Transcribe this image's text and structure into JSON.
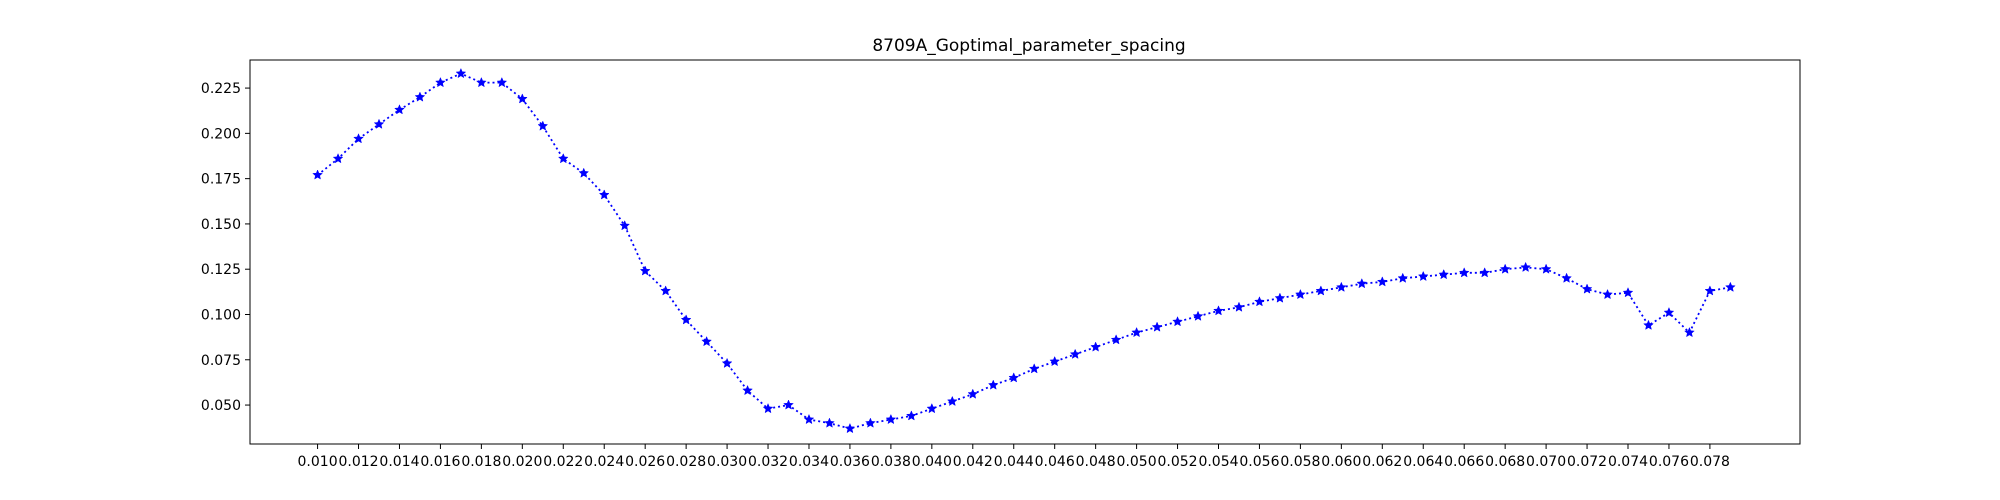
{
  "chart_data": {
    "type": "line",
    "title": "8709A_Goptimal_parameter_spacing",
    "xlabel": "",
    "ylabel": "",
    "xlim": [
      0.0067,
      0.0824
    ],
    "ylim": [
      0.0285,
      0.2405
    ],
    "x_ticks": [
      0.01,
      0.012,
      0.014,
      0.016,
      0.018,
      0.02,
      0.022,
      0.024,
      0.026,
      0.028,
      0.03,
      0.032,
      0.034,
      0.036,
      0.038,
      0.04,
      0.042,
      0.044,
      0.046,
      0.048,
      0.05,
      0.052,
      0.054,
      0.056,
      0.058,
      0.06,
      0.062,
      0.064,
      0.066,
      0.068,
      0.07,
      0.072,
      0.074,
      0.076,
      0.078
    ],
    "x_tick_labels": [
      "0.010",
      "0.012",
      "0.014",
      "0.016",
      "0.018",
      "0.020",
      "0.022",
      "0.024",
      "0.026",
      "0.028",
      "0.030",
      "0.032",
      "0.034",
      "0.036",
      "0.038",
      "0.040",
      "0.042",
      "0.044",
      "0.046",
      "0.048",
      "0.050",
      "0.052",
      "0.054",
      "0.056",
      "0.058",
      "0.060",
      "0.062",
      "0.064",
      "0.066",
      "0.068",
      "0.070",
      "0.072",
      "0.074",
      "0.076",
      "0.078"
    ],
    "y_ticks": [
      0.05,
      0.075,
      0.1,
      0.125,
      0.15,
      0.175,
      0.2,
      0.225
    ],
    "y_tick_labels": [
      "0.050",
      "0.075",
      "0.100",
      "0.125",
      "0.150",
      "0.175",
      "0.200",
      "0.225"
    ],
    "grid": false,
    "series": [
      {
        "color": "#0000ff",
        "marker": "star",
        "linestyle": "dotted",
        "x": [
          0.01,
          0.011,
          0.012,
          0.013,
          0.014,
          0.015,
          0.016,
          0.017,
          0.018,
          0.019,
          0.02,
          0.021,
          0.022,
          0.023,
          0.024,
          0.025,
          0.026,
          0.027,
          0.028,
          0.029,
          0.03,
          0.031,
          0.032,
          0.033,
          0.034,
          0.035,
          0.036,
          0.037,
          0.038,
          0.039,
          0.04,
          0.041,
          0.042,
          0.043,
          0.044,
          0.045,
          0.046,
          0.047,
          0.048,
          0.049,
          0.05,
          0.051,
          0.052,
          0.053,
          0.054,
          0.055,
          0.056,
          0.057,
          0.058,
          0.059,
          0.06,
          0.061,
          0.062,
          0.063,
          0.064,
          0.065,
          0.066,
          0.067,
          0.068,
          0.069,
          0.07,
          0.071,
          0.072,
          0.073,
          0.074,
          0.075,
          0.076,
          0.077,
          0.078,
          0.079
        ],
        "y": [
          0.177,
          0.186,
          0.197,
          0.205,
          0.213,
          0.22,
          0.228,
          0.233,
          0.228,
          0.228,
          0.219,
          0.204,
          0.186,
          0.178,
          0.166,
          0.149,
          0.124,
          0.113,
          0.097,
          0.085,
          0.073,
          0.058,
          0.048,
          0.05,
          0.042,
          0.04,
          0.037,
          0.04,
          0.042,
          0.044,
          0.048,
          0.052,
          0.056,
          0.061,
          0.065,
          0.07,
          0.074,
          0.078,
          0.082,
          0.086,
          0.09,
          0.093,
          0.096,
          0.099,
          0.102,
          0.104,
          0.107,
          0.109,
          0.111,
          0.113,
          0.115,
          0.117,
          0.118,
          0.12,
          0.121,
          0.122,
          0.123,
          0.123,
          0.125,
          0.126,
          0.125,
          0.12,
          0.114,
          0.111,
          0.112,
          0.094,
          0.101,
          0.09,
          0.113,
          0.115
        ]
      }
    ]
  }
}
